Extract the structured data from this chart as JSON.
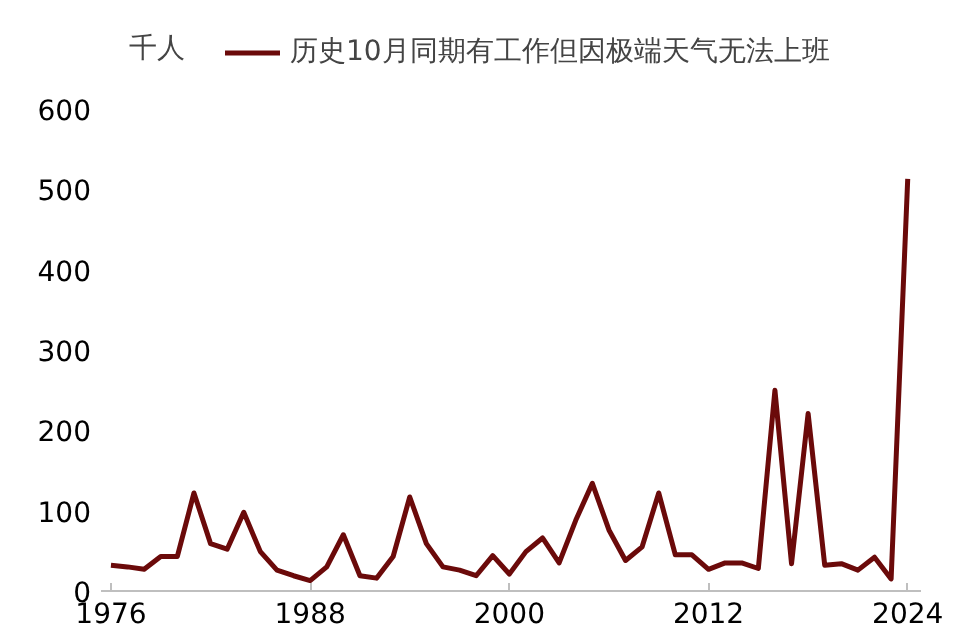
{
  "chart_data": {
    "type": "line",
    "ylabel": "千人",
    "x": [
      1976,
      1977,
      1978,
      1979,
      1980,
      1981,
      1982,
      1983,
      1984,
      1985,
      1986,
      1987,
      1988,
      1989,
      1990,
      1991,
      1992,
      1993,
      1994,
      1995,
      1996,
      1997,
      1998,
      1999,
      2000,
      2001,
      2002,
      2003,
      2004,
      2005,
      2006,
      2007,
      2008,
      2009,
      2010,
      2011,
      2012,
      2013,
      2014,
      2015,
      2016,
      2017,
      2018,
      2019,
      2020,
      2021,
      2022,
      2023,
      2024
    ],
    "series": [
      {
        "name": "历史10月同期有工作但因极端天气无法上班",
        "color": "#6b0a0a",
        "values": [
          32,
          30,
          27,
          43,
          43,
          122,
          59,
          52,
          98,
          49,
          26,
          19,
          13,
          30,
          70,
          19,
          16,
          43,
          117,
          59,
          30,
          26,
          19,
          44,
          21,
          49,
          66,
          35,
          88,
          134,
          76,
          38,
          55,
          122,
          45,
          45,
          27,
          35,
          35,
          28,
          250,
          34,
          221,
          32,
          34,
          26,
          42,
          15,
          513
        ]
      }
    ],
    "xlim": [
      1975.4,
      2024.8
    ],
    "xticks": [
      1976,
      1988,
      2000,
      2012,
      2024
    ],
    "ylim": [
      0,
      600
    ],
    "yticks": [
      0,
      100,
      200,
      300,
      400,
      500,
      600
    ],
    "grid": false,
    "legend": "top",
    "marker": "none",
    "line_style": "solid"
  }
}
